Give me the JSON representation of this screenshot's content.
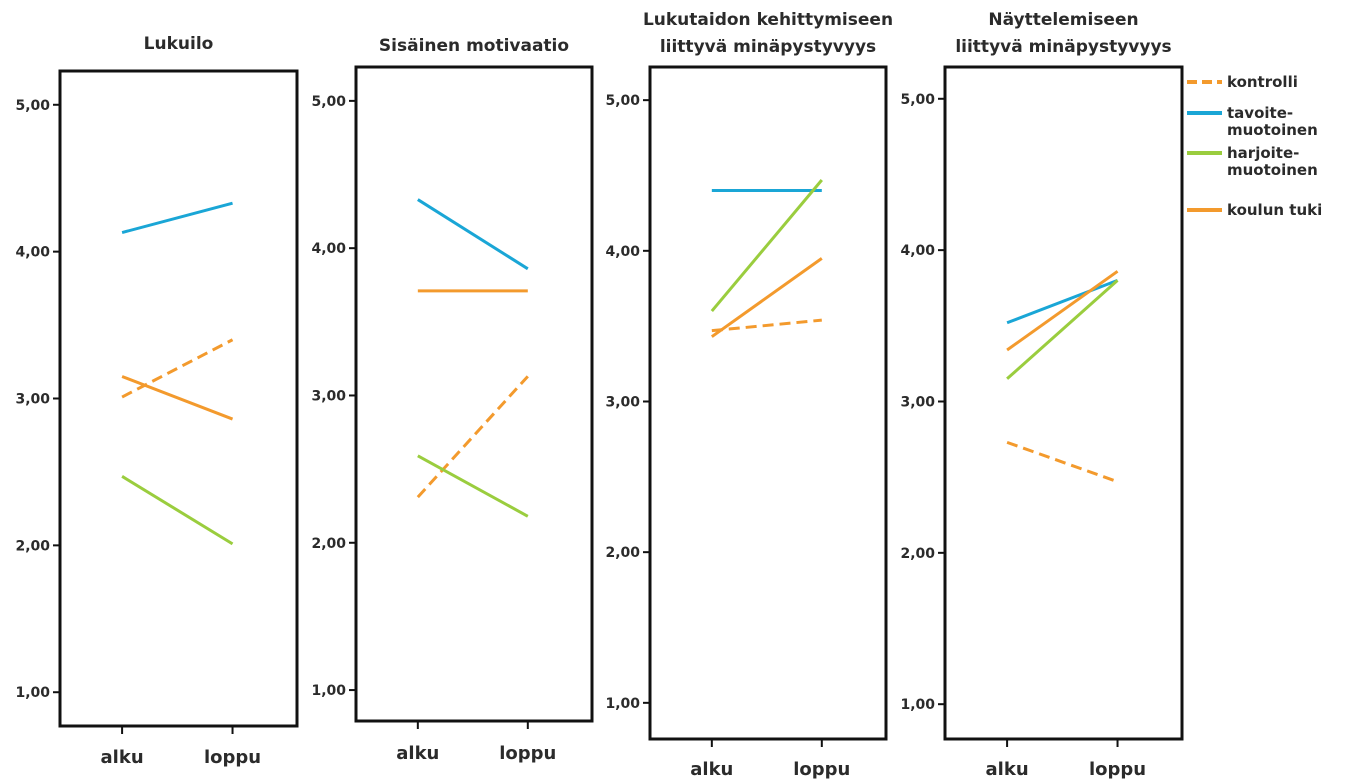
{
  "chart_data": [
    {
      "type": "line",
      "title_lines": [
        "Lukuilo"
      ],
      "categories": [
        "alku",
        "loppu"
      ],
      "yticks": [
        "1,00",
        "2,00",
        "3,00",
        "4,00",
        "5,00"
      ],
      "ylim": [
        0.77,
        5.23
      ],
      "series": [
        {
          "key": "kontrolli",
          "values": [
            3.01,
            3.4
          ]
        },
        {
          "key": "tavoite",
          "values": [
            4.13,
            4.33
          ]
        },
        {
          "key": "harjoite",
          "values": [
            2.47,
            2.01
          ]
        },
        {
          "key": "koulun",
          "values": [
            3.15,
            2.86
          ]
        }
      ]
    },
    {
      "type": "line",
      "title_lines": [
        "Sisäinen motivaatio"
      ],
      "categories": [
        "alku",
        "loppu"
      ],
      "yticks": [
        "1,00",
        "2,00",
        "3,00",
        "4,00",
        "5,00"
      ],
      "ylim": [
        0.79,
        5.23
      ],
      "series": [
        {
          "key": "kontrolli",
          "values": [
            2.31,
            3.13
          ]
        },
        {
          "key": "tavoite",
          "values": [
            4.33,
            3.86
          ]
        },
        {
          "key": "harjoite",
          "values": [
            2.59,
            2.18
          ]
        },
        {
          "key": "koulun",
          "values": [
            3.71,
            3.71
          ]
        }
      ]
    },
    {
      "type": "line",
      "title_lines": [
        "Lukutaidon kehittymiseen",
        "liittyvä minäpystyvyys"
      ],
      "categories": [
        "alku",
        "loppu"
      ],
      "yticks": [
        "1,00",
        "2,00",
        "3,00",
        "4,00",
        "5,00"
      ],
      "ylim": [
        0.76,
        5.22
      ],
      "series": [
        {
          "key": "kontrolli",
          "values": [
            3.47,
            3.54
          ]
        },
        {
          "key": "tavoite",
          "values": [
            4.4,
            4.4
          ]
        },
        {
          "key": "harjoite",
          "values": [
            3.6,
            4.47
          ]
        },
        {
          "key": "koulun",
          "values": [
            3.43,
            3.95
          ]
        }
      ]
    },
    {
      "type": "line",
      "title_lines": [
        "Näyttelemiseen",
        "liittyvä minäpystyvyys"
      ],
      "categories": [
        "alku",
        "loppu"
      ],
      "yticks": [
        "1,00",
        "2,00",
        "3,00",
        "4,00",
        "5,00"
      ],
      "ylim": [
        0.77,
        5.21
      ],
      "series": [
        {
          "key": "kontrolli",
          "values": [
            2.73,
            2.47
          ]
        },
        {
          "key": "tavoite",
          "values": [
            3.52,
            3.8
          ]
        },
        {
          "key": "harjoite",
          "values": [
            3.15,
            3.8
          ]
        },
        {
          "key": "koulun",
          "values": [
            3.34,
            3.86
          ]
        }
      ]
    }
  ],
  "legend": {
    "placement": "top-right",
    "items": [
      {
        "key": "kontrolli",
        "label_lines": [
          "kontrolli"
        ],
        "color": "#F39A2D",
        "dashed": true
      },
      {
        "key": "tavoite",
        "label_lines": [
          "tavoite-",
          "muotoinen"
        ],
        "color": "#1AA6D6",
        "dashed": false
      },
      {
        "key": "harjoite",
        "label_lines": [
          "harjoite-",
          "muotoinen"
        ],
        "color": "#9ACD3E",
        "dashed": false
      },
      {
        "key": "koulun",
        "label_lines": [
          "koulun tuki"
        ],
        "color": "#F39A2D",
        "dashed": false
      }
    ]
  }
}
